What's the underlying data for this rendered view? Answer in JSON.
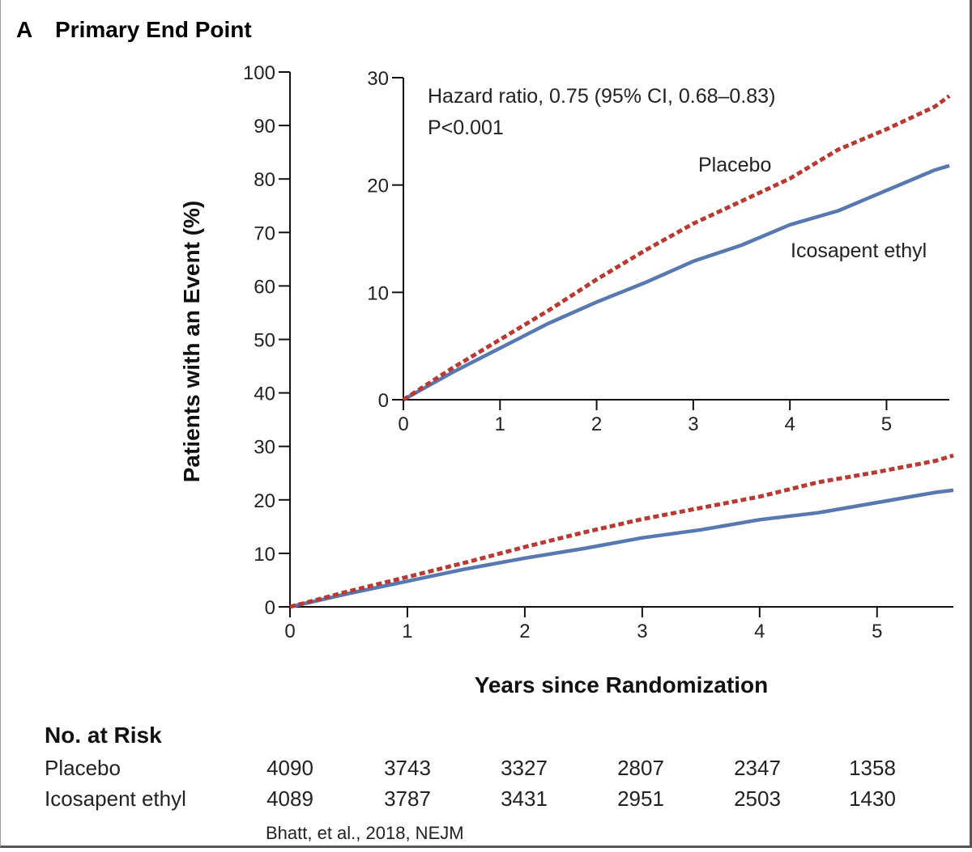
{
  "figure": {
    "panel_letter": "A",
    "panel_title": "Primary End Point",
    "source_note": "Bhatt, et al., 2018, NEJM"
  },
  "chart_data": [
    {
      "type": "line",
      "xlabel": "Years since Randomization",
      "ylabel": "Patients with an Event (%)",
      "xlim": [
        0,
        5.65
      ],
      "ylim": [
        0,
        100
      ],
      "xticks": [
        0,
        1,
        2,
        3,
        4,
        5
      ],
      "yticks": [
        0,
        10,
        20,
        30,
        40,
        50,
        60,
        70,
        80,
        90,
        100
      ],
      "series": [
        {
          "name": "Placebo",
          "color": "#b83a33",
          "style": "dashed",
          "x": [
            0,
            0.5,
            1.0,
            1.5,
            2.0,
            2.5,
            3.0,
            3.5,
            4.0,
            4.5,
            5.0,
            5.5,
            5.65
          ],
          "y": [
            0,
            2.9,
            5.6,
            8.3,
            11.2,
            13.9,
            16.4,
            18.5,
            20.6,
            23.3,
            25.2,
            27.3,
            28.3
          ]
        },
        {
          "name": "Icosapent ethyl",
          "color": "#5878b0",
          "style": "solid",
          "x": [
            0,
            0.5,
            1.0,
            1.5,
            2.0,
            2.5,
            3.0,
            3.5,
            4.0,
            4.5,
            5.0,
            5.5,
            5.65
          ],
          "y": [
            0,
            2.5,
            4.8,
            7.1,
            9.1,
            10.9,
            12.9,
            14.4,
            16.3,
            17.6,
            19.5,
            21.4,
            21.8
          ]
        }
      ]
    },
    {
      "type": "line",
      "inset": true,
      "xlim": [
        0,
        5.65
      ],
      "ylim": [
        0,
        30
      ],
      "xticks": [
        0,
        1,
        2,
        3,
        4,
        5
      ],
      "yticks": [
        0,
        10,
        20,
        30
      ],
      "annotation_line1": "Hazard ratio, 0.75 (95% CI, 0.68–0.83)",
      "annotation_line2": "P<0.001",
      "label_placebo": "Placebo",
      "label_icosapent": "Icosapent ethyl",
      "series_ref": "same data as main chart"
    },
    {
      "type": "table",
      "title": "No. at Risk",
      "rows": [
        {
          "label": "Placebo",
          "values": [
            "4090",
            "3743",
            "3327",
            "2807",
            "2347",
            "1358"
          ]
        },
        {
          "label": "Icosapent ethyl",
          "values": [
            "4089",
            "3787",
            "3431",
            "2951",
            "2503",
            "1430"
          ]
        }
      ]
    }
  ]
}
